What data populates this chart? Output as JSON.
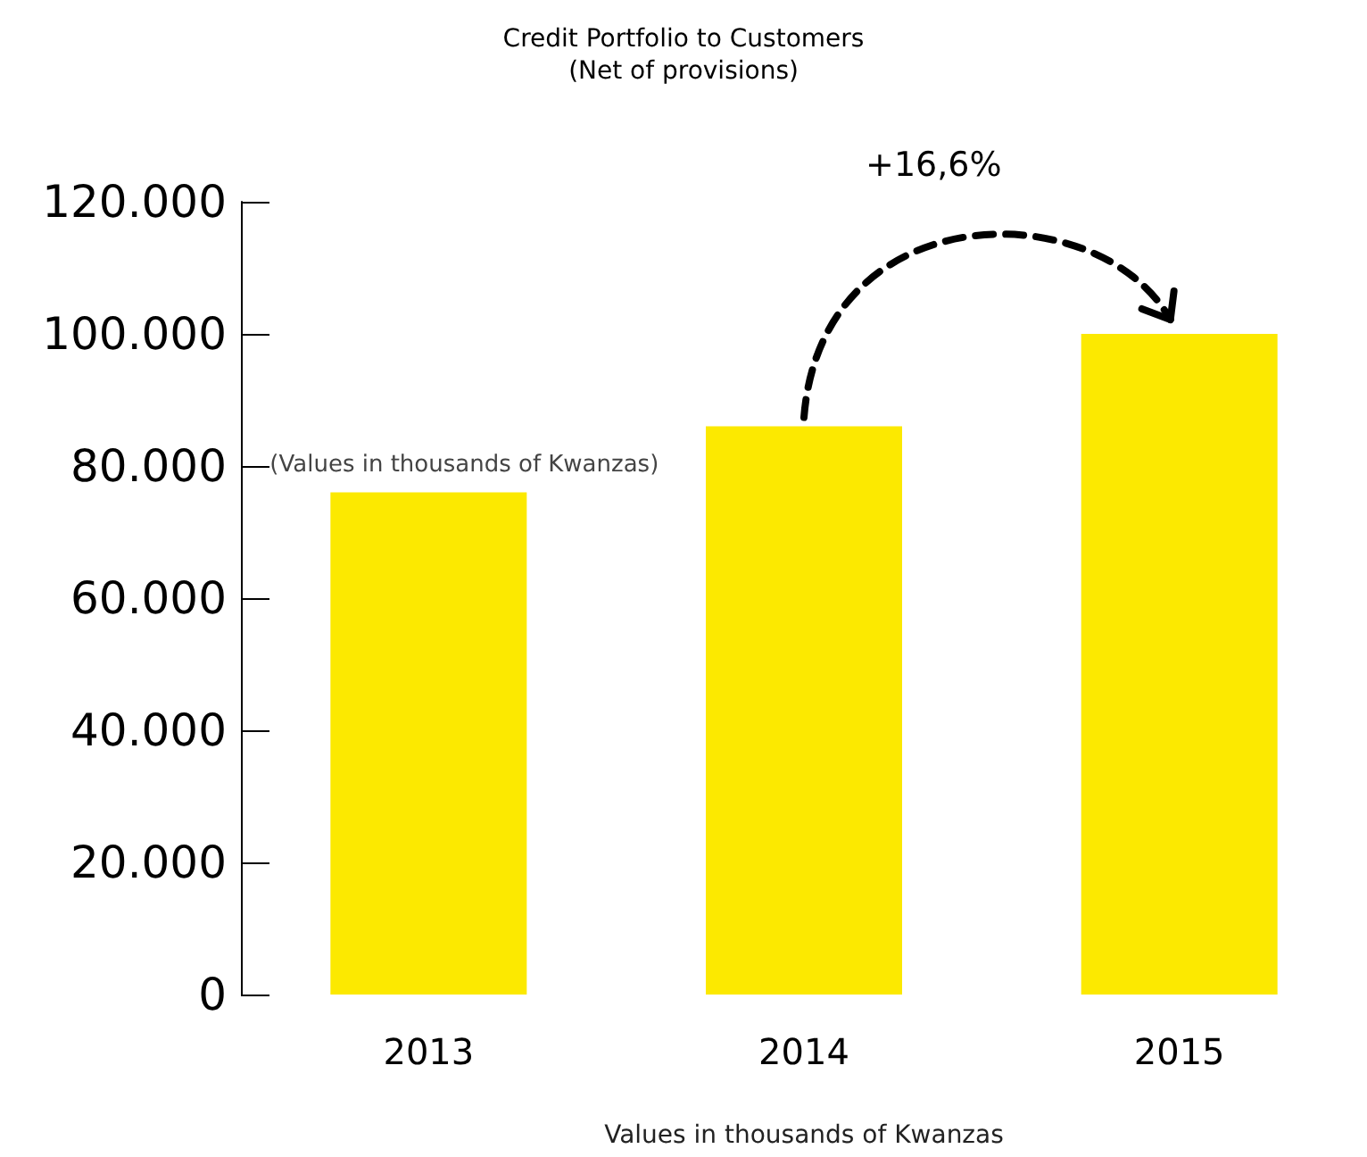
{
  "chart_data": {
    "type": "bar",
    "title": "Credit Portfolio to Customers",
    "subtitle": "(Net of provisions)",
    "xlabel": "Values in thousands of Kwanzas",
    "categories": [
      "2013",
      "2014",
      "2015"
    ],
    "values": [
      76000,
      86000,
      100000
    ],
    "color": "#fce900",
    "ylim": [
      0,
      120000
    ],
    "yticks": [
      0,
      {
        "value": 20000,
        "label": "20.000"
      },
      {
        "value": 40000,
        "label": "40.000"
      },
      {
        "value": 60000,
        "label": "60.000"
      },
      {
        "value": 80000,
        "label": "80.000"
      },
      {
        "value": 100000,
        "label": "100.000"
      },
      {
        "value": 120000,
        "label": "120.000"
      }
    ],
    "grid": false,
    "annotations": [
      "+16,6%",
      "(Values in thousands of Kwanzas)"
    ]
  }
}
